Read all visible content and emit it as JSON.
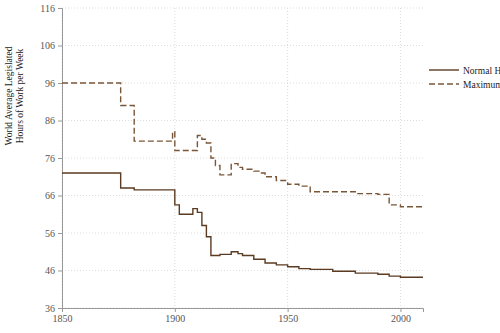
{
  "chart_data": {
    "type": "line",
    "ylabel": [
      "World Average Legislated",
      "Hours of Work per Week"
    ],
    "x": [
      1850,
      1876,
      1879,
      1882,
      1899,
      1900,
      1902,
      1905,
      1908,
      1910,
      1912,
      1914,
      1916,
      1918,
      1920,
      1925,
      1928,
      1930,
      1935,
      1938,
      1940,
      1945,
      1950,
      1955,
      1960,
      1970,
      1980,
      1990,
      1995,
      2000,
      2010
    ],
    "series": [
      {
        "name": "Normal Hours",
        "color": "#5b3b22",
        "line_style": "solid",
        "values": [
          72,
          68,
          68,
          67.5,
          67.5,
          63.5,
          61,
          61,
          62.5,
          61.5,
          58,
          55,
          50,
          50,
          50.3,
          51,
          50.5,
          50,
          49,
          49,
          48,
          47.5,
          47,
          46.5,
          46.3,
          45.8,
          45.3,
          45,
          44.5,
          44.2,
          44.3
        ]
      },
      {
        "name": "Maximum Hours",
        "color": "#7a5638",
        "line_style": "dashed",
        "values": [
          96,
          90,
          90,
          80.5,
          83,
          78,
          78,
          78,
          78,
          82,
          81,
          80,
          76,
          74,
          71.5,
          74.5,
          73.5,
          73,
          72.5,
          72,
          71,
          70,
          69,
          68.5,
          67,
          67,
          66.5,
          66.3,
          63.5,
          63,
          63
        ]
      }
    ],
    "xlim": [
      1850,
      2010
    ],
    "xticks": [
      1850,
      1900,
      1950,
      2000
    ],
    "ylim": [
      36,
      116
    ],
    "yticks": [
      36,
      46,
      56,
      66,
      76,
      86,
      96,
      106,
      116
    ],
    "grid": true,
    "legend": "right"
  }
}
